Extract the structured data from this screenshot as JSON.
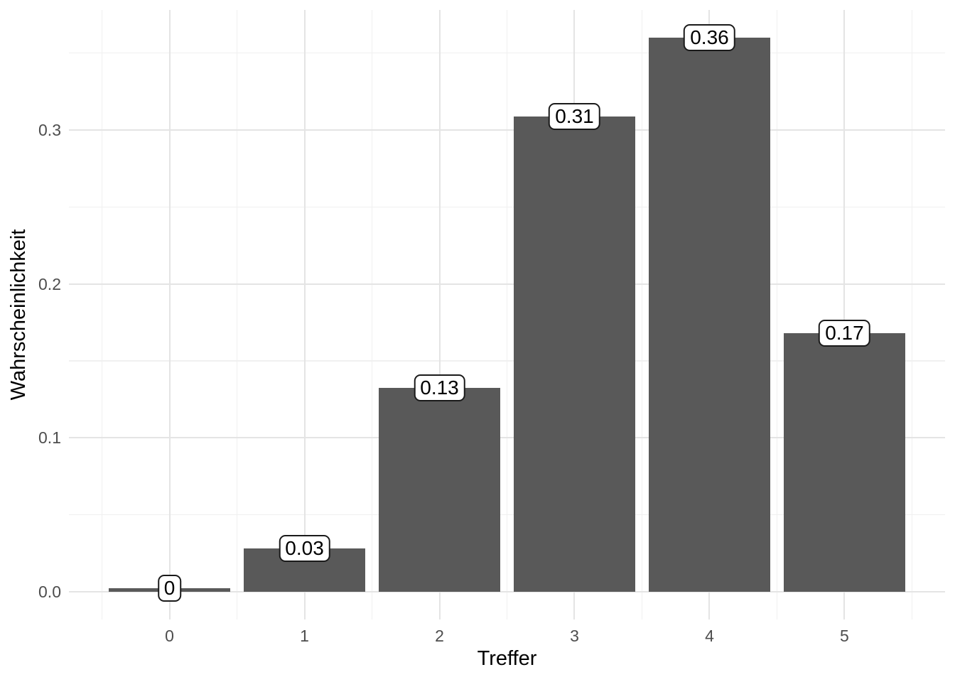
{
  "chart_data": {
    "type": "bar",
    "title": "",
    "xlabel": "Treffer",
    "ylabel": "Wahrscheinlichkeit",
    "categories": [
      0,
      1,
      2,
      3,
      4,
      5
    ],
    "values": [
      0.00243,
      0.02835,
      0.1323,
      0.3087,
      0.36015,
      0.16807
    ],
    "bar_labels": [
      "0",
      "0.03",
      "0.13",
      "0.31",
      "0.36",
      "0.17"
    ],
    "xtick_labels": [
      "0",
      "1",
      "2",
      "3",
      "4",
      "5"
    ],
    "yticks": [
      0.0,
      0.1,
      0.2,
      0.3
    ],
    "ytick_labels": [
      "0.0",
      "0.1",
      "0.2",
      "0.3"
    ],
    "yticks_minor": [
      0.05,
      0.15,
      0.25,
      0.35
    ],
    "xticks_minor": [
      -0.5,
      0.5,
      1.5,
      2.5,
      3.5,
      4.5,
      5.5
    ],
    "xlim": [
      -0.745,
      5.745
    ],
    "ylim": [
      -0.018,
      0.378
    ],
    "bar_width_units": 0.9,
    "grid": true,
    "legend": "none",
    "colors": {
      "bar_fill": "#595959",
      "grid_major": "#e4e4e4",
      "grid_minor": "#f0f0f0",
      "axis_text": "#4d4d4d",
      "axis_title": "#000000",
      "label_box_fill": "#ffffff",
      "label_box_border": "#1a1a1a",
      "label_box_text": "#000000",
      "background": "#ffffff"
    }
  }
}
